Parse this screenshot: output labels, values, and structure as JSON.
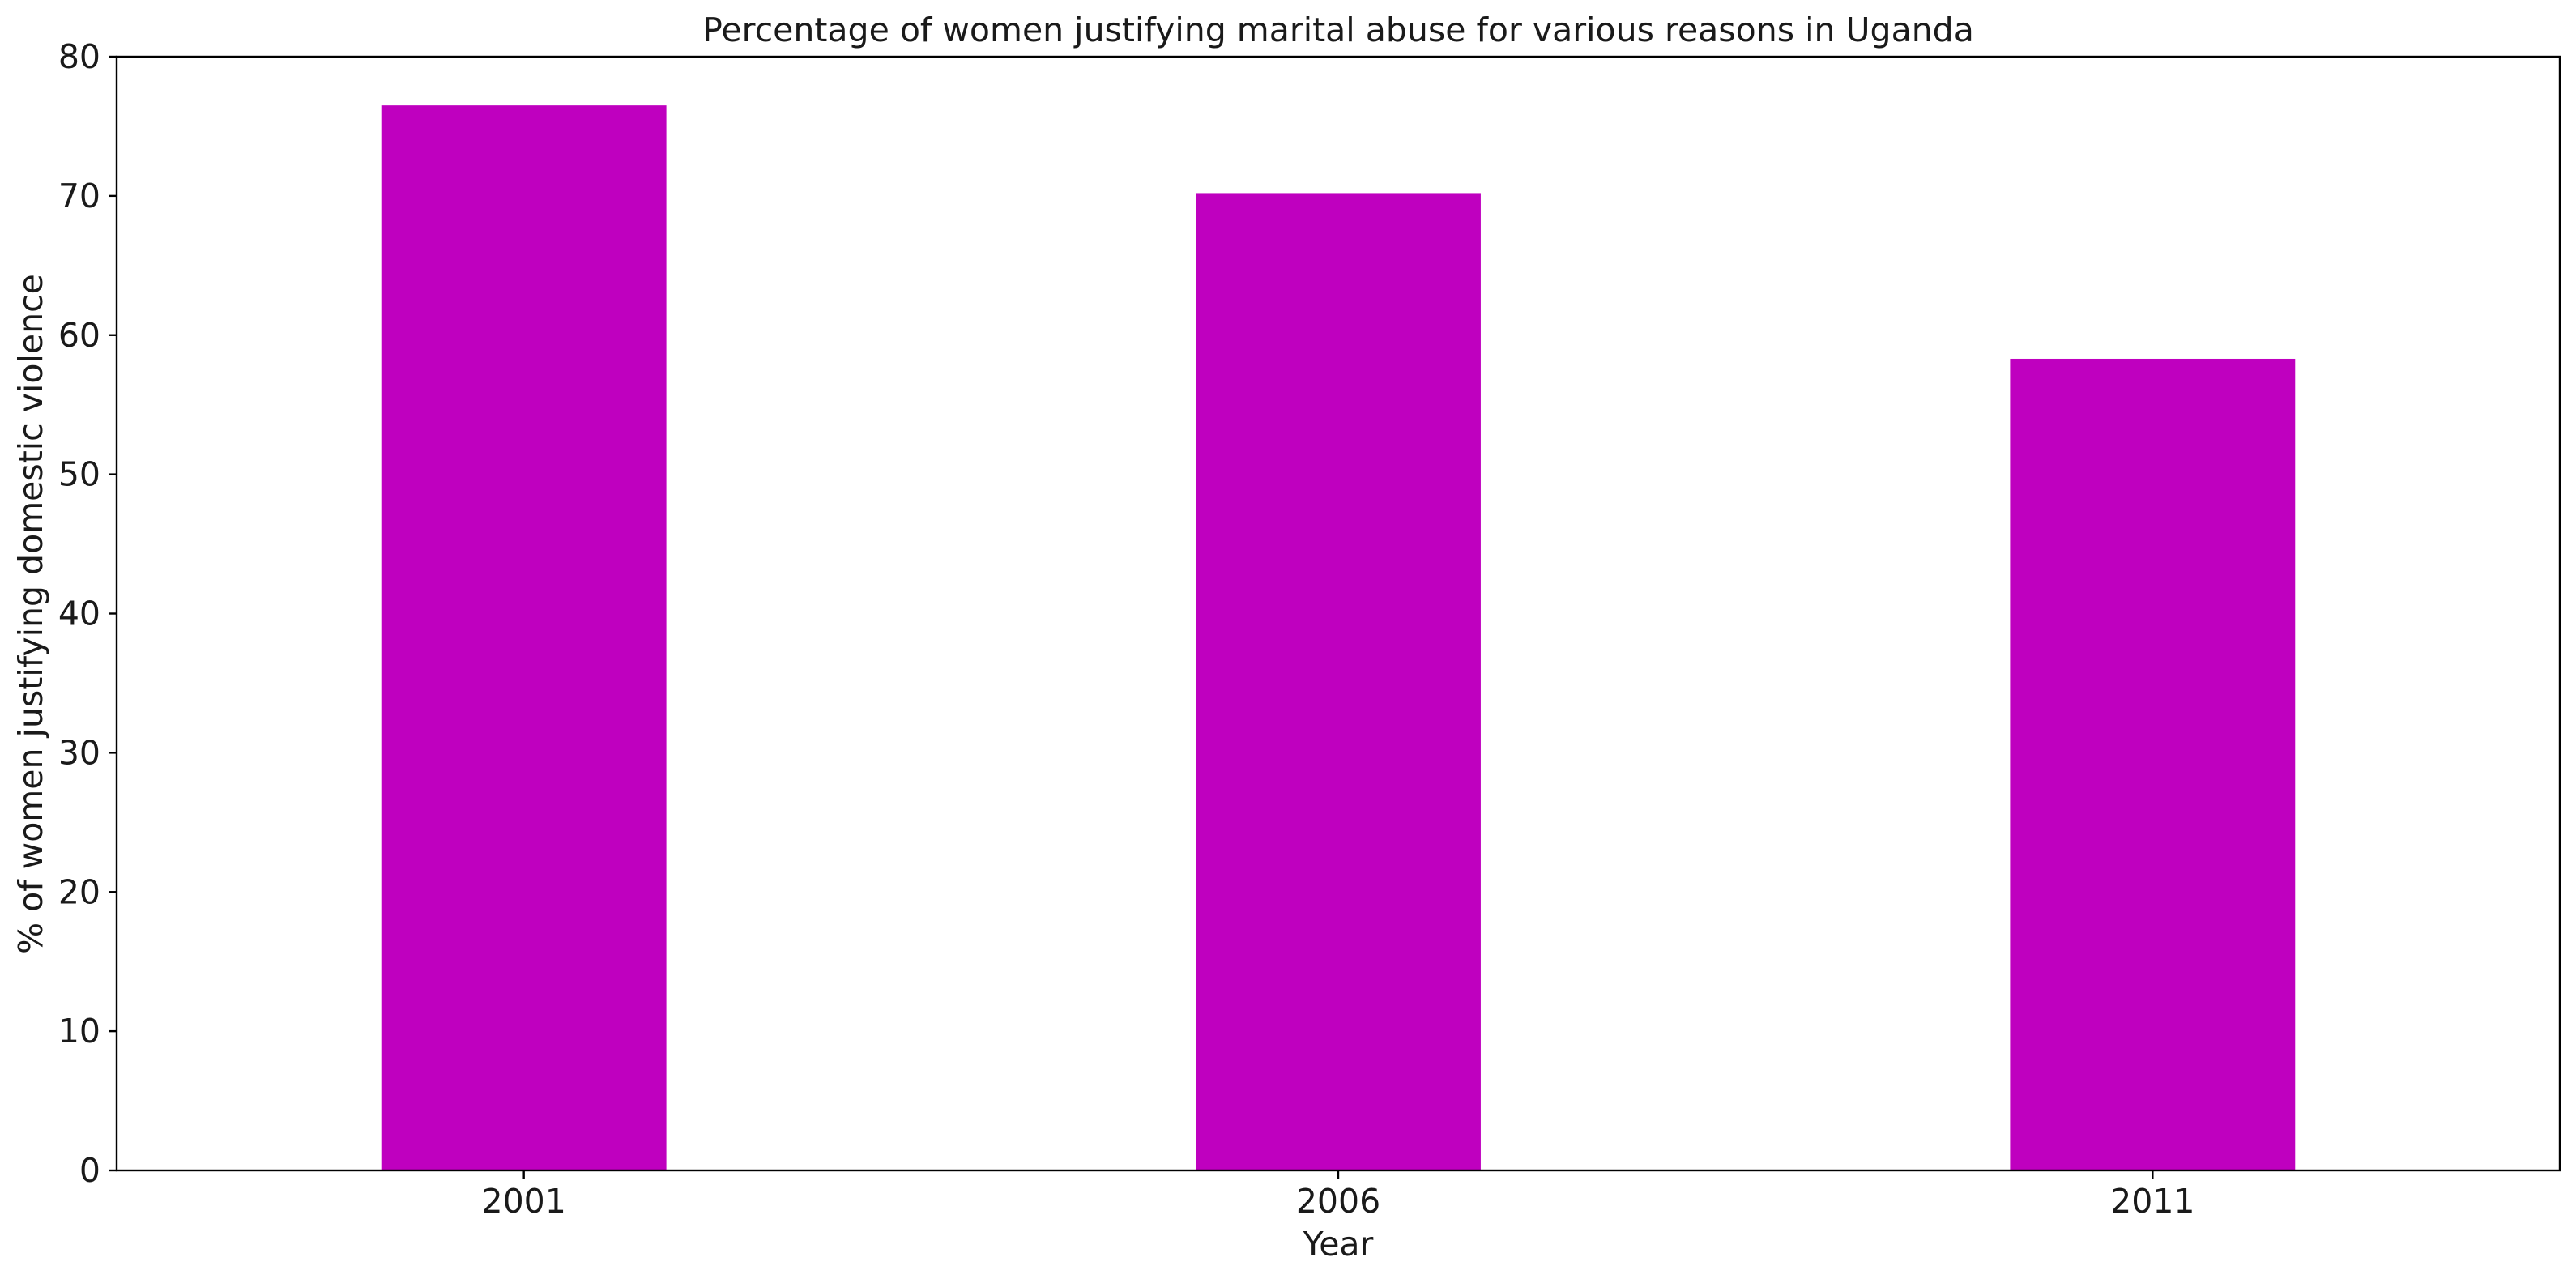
{
  "chart_data": {
    "type": "bar",
    "title": "Percentage of women justifying marital abuse for various reasons in Uganda",
    "xlabel": "Year",
    "ylabel": "% of women justifying domestic violence",
    "categories": [
      "2001",
      "2006",
      "2011"
    ],
    "values": [
      76.5,
      70.2,
      58.3
    ],
    "ylim": [
      0,
      80
    ],
    "yticks": [
      0,
      10,
      20,
      30,
      40,
      50,
      60,
      70,
      80
    ],
    "grid": false,
    "legend": "none",
    "bar_color": "#bf00bf"
  }
}
